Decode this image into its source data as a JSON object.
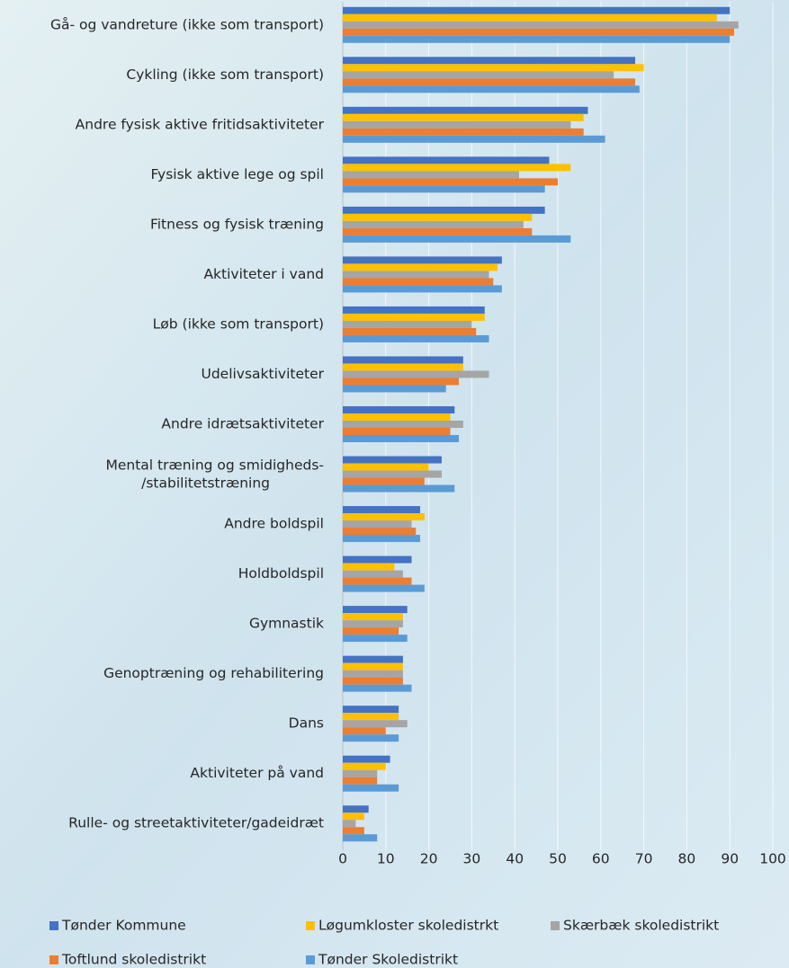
{
  "chart_data": {
    "type": "bar",
    "orientation": "horizontal",
    "categories": [
      "Gå- og vandreture (ikke som transport)",
      "Cykling (ikke som transport)",
      "Andre fysisk aktive fritidsaktiviteter",
      "Fysisk aktive lege og spil",
      "Fitness og fysisk træning",
      "Aktiviteter i vand",
      "Løb (ikke som transport)",
      "Udelivsaktiviteter",
      "Andre idrætsaktiviteter",
      "Mental træning og smidigheds-\n/stabilitetstræning",
      "Andre boldspil",
      "Holdboldspil",
      "Gymnastik",
      "Genoptræning og rehabilitering",
      "Dans",
      "Aktiviteter på vand",
      "Rulle- og streetaktiviteter/gadeidræt"
    ],
    "series": [
      {
        "name": "Tønder Kommune",
        "color": "#4472c4",
        "values": [
          90,
          68,
          57,
          48,
          47,
          37,
          33,
          28,
          26,
          23,
          18,
          16,
          15,
          14,
          13,
          11,
          6
        ]
      },
      {
        "name": "Løgumkloster skoledistrkt",
        "color": "#ffc000",
        "values": [
          87,
          70,
          56,
          53,
          44,
          36,
          33,
          28,
          25,
          20,
          19,
          12,
          14,
          14,
          13,
          10,
          5
        ]
      },
      {
        "name": "Skærbæk skoledistrikt",
        "color": "#a5a5a5",
        "values": [
          92,
          63,
          53,
          41,
          42,
          34,
          30,
          34,
          28,
          23,
          16,
          14,
          14,
          14,
          15,
          8,
          3
        ]
      },
      {
        "name": "Toftlund skoledistrikt",
        "color": "#ed7d31",
        "values": [
          91,
          68,
          56,
          50,
          44,
          35,
          31,
          27,
          25,
          19,
          17,
          16,
          13,
          14,
          10,
          8,
          5
        ]
      },
      {
        "name": "Tønder Skoledistrikt",
        "color": "#5b9bd5",
        "values": [
          90,
          69,
          61,
          47,
          53,
          37,
          34,
          24,
          27,
          26,
          18,
          19,
          15,
          16,
          13,
          13,
          8
        ]
      }
    ],
    "xlim": [
      0,
      100
    ],
    "xticks": [
      0,
      10,
      20,
      30,
      40,
      50,
      60,
      70,
      80,
      90,
      100
    ],
    "grid": true
  }
}
